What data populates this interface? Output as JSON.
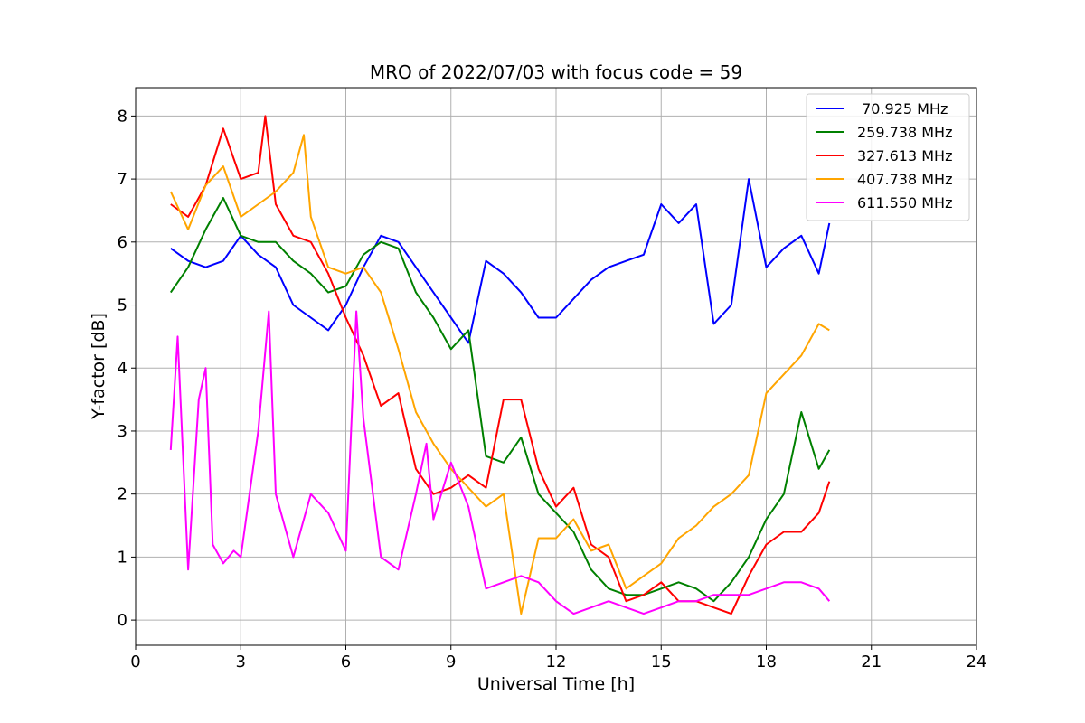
{
  "chart_data": {
    "type": "line",
    "title": "MRO of 2022/07/03 with focus code = 59",
    "xlabel": "Universal Time [h]",
    "ylabel": "Y-factor [dB]",
    "xlim": [
      0,
      24
    ],
    "ylim": [
      -0.4,
      8.45
    ],
    "xticks": [
      0,
      3,
      6,
      9,
      12,
      15,
      18,
      21,
      24
    ],
    "yticks": [
      0,
      1,
      2,
      3,
      4,
      5,
      6,
      7,
      8
    ],
    "grid": true,
    "legend_position": "top-right",
    "series": [
      {
        "name": " 70.925 MHz",
        "color": "#0000ff",
        "x": [
          1.0,
          1.5,
          2.0,
          2.5,
          3.0,
          3.5,
          4.0,
          4.5,
          5.0,
          5.5,
          6.0,
          6.5,
          7.0,
          7.5,
          8.0,
          8.5,
          9.0,
          9.5,
          10.0,
          10.5,
          11.0,
          11.5,
          12.0,
          12.5,
          13.0,
          13.5,
          14.0,
          14.5,
          15.0,
          15.5,
          16.0,
          16.5,
          17.0,
          17.5,
          18.0,
          18.5,
          19.0,
          19.5,
          19.8
        ],
        "y": [
          5.9,
          5.7,
          5.6,
          5.7,
          6.1,
          5.8,
          5.6,
          5.0,
          4.8,
          4.6,
          5.0,
          5.6,
          6.1,
          6.0,
          5.6,
          5.2,
          4.8,
          4.4,
          5.7,
          5.5,
          5.2,
          4.8,
          4.8,
          5.1,
          5.4,
          5.6,
          5.7,
          5.8,
          6.6,
          6.3,
          6.6,
          4.7,
          5.0,
          7.0,
          5.6,
          5.9,
          6.1,
          5.5,
          6.3
        ]
      },
      {
        "name": "259.738 MHz",
        "color": "#008000",
        "x": [
          1.0,
          1.5,
          2.0,
          2.5,
          3.0,
          3.5,
          4.0,
          4.5,
          5.0,
          5.5,
          6.0,
          6.5,
          7.0,
          7.5,
          8.0,
          8.5,
          9.0,
          9.5,
          10.0,
          10.5,
          11.0,
          11.5,
          12.0,
          12.5,
          13.0,
          13.5,
          14.0,
          14.5,
          15.0,
          15.5,
          16.0,
          16.5,
          17.0,
          17.5,
          18.0,
          18.5,
          19.0,
          19.5,
          19.8
        ],
        "y": [
          5.2,
          5.6,
          6.2,
          6.7,
          6.1,
          6.0,
          6.0,
          5.7,
          5.5,
          5.2,
          5.3,
          5.8,
          6.0,
          5.9,
          5.2,
          4.8,
          4.3,
          4.6,
          2.6,
          2.5,
          2.9,
          2.0,
          1.7,
          1.4,
          0.8,
          0.5,
          0.4,
          0.4,
          0.5,
          0.6,
          0.5,
          0.3,
          0.6,
          1.0,
          1.6,
          2.0,
          3.3,
          2.4,
          2.7
        ]
      },
      {
        "name": "327.613 MHz",
        "color": "#ff0000",
        "x": [
          1.0,
          1.5,
          2.0,
          2.5,
          3.0,
          3.5,
          3.7,
          4.0,
          4.5,
          5.0,
          5.5,
          6.0,
          6.5,
          7.0,
          7.5,
          8.0,
          8.5,
          9.0,
          9.5,
          10.0,
          10.5,
          11.0,
          11.5,
          12.0,
          12.5,
          13.0,
          13.5,
          14.0,
          14.5,
          15.0,
          15.5,
          16.0,
          16.5,
          17.0,
          17.5,
          18.0,
          18.5,
          19.0,
          19.5,
          19.8
        ],
        "y": [
          6.6,
          6.4,
          6.9,
          7.8,
          7.0,
          7.1,
          8.0,
          6.6,
          6.1,
          6.0,
          5.5,
          4.8,
          4.2,
          3.4,
          3.6,
          2.4,
          2.0,
          2.1,
          2.3,
          2.1,
          3.5,
          3.5,
          2.4,
          1.8,
          2.1,
          1.2,
          1.0,
          0.3,
          0.4,
          0.6,
          0.3,
          0.3,
          0.2,
          0.1,
          0.7,
          1.2,
          1.4,
          1.4,
          1.7,
          2.2
        ]
      },
      {
        "name": "407.738 MHz",
        "color": "#ffa500",
        "x": [
          1.0,
          1.5,
          2.0,
          2.5,
          3.0,
          3.5,
          4.0,
          4.5,
          4.8,
          5.0,
          5.5,
          6.0,
          6.5,
          7.0,
          7.5,
          8.0,
          8.5,
          9.0,
          9.5,
          10.0,
          10.5,
          11.0,
          11.5,
          12.0,
          12.5,
          13.0,
          13.5,
          14.0,
          14.5,
          15.0,
          15.5,
          16.0,
          16.5,
          17.0,
          17.5,
          18.0,
          18.5,
          19.0,
          19.5,
          19.8
        ],
        "y": [
          6.8,
          6.2,
          6.9,
          7.2,
          6.4,
          6.6,
          6.8,
          7.1,
          7.7,
          6.4,
          5.6,
          5.5,
          5.6,
          5.2,
          4.3,
          3.3,
          2.8,
          2.4,
          2.1,
          1.8,
          2.0,
          0.1,
          1.3,
          1.3,
          1.6,
          1.1,
          1.2,
          0.5,
          0.7,
          0.9,
          1.3,
          1.5,
          1.8,
          2.0,
          2.3,
          3.6,
          3.9,
          4.2,
          4.7,
          4.6
        ]
      },
      {
        "name": "611.550 MHz",
        "color": "#ff00ff",
        "x": [
          1.0,
          1.2,
          1.5,
          1.8,
          2.0,
          2.2,
          2.5,
          2.8,
          3.0,
          3.5,
          3.8,
          4.0,
          4.5,
          5.0,
          5.5,
          6.0,
          6.3,
          6.5,
          7.0,
          7.5,
          8.0,
          8.3,
          8.5,
          9.0,
          9.5,
          10.0,
          10.5,
          11.0,
          11.5,
          12.0,
          12.5,
          13.0,
          13.5,
          14.0,
          14.5,
          15.0,
          15.5,
          16.0,
          16.5,
          17.0,
          17.5,
          18.0,
          18.5,
          19.0,
          19.5,
          19.8
        ],
        "y": [
          2.7,
          4.5,
          0.8,
          3.5,
          4.0,
          1.2,
          0.9,
          1.1,
          1.0,
          3.0,
          4.9,
          2.0,
          1.0,
          2.0,
          1.7,
          1.1,
          4.9,
          3.2,
          1.0,
          0.8,
          2.0,
          2.8,
          1.6,
          2.5,
          1.8,
          0.5,
          0.6,
          0.7,
          0.6,
          0.3,
          0.1,
          0.2,
          0.3,
          0.2,
          0.1,
          0.2,
          0.3,
          0.3,
          0.4,
          0.4,
          0.4,
          0.5,
          0.6,
          0.6,
          0.5,
          0.3
        ]
      }
    ]
  }
}
